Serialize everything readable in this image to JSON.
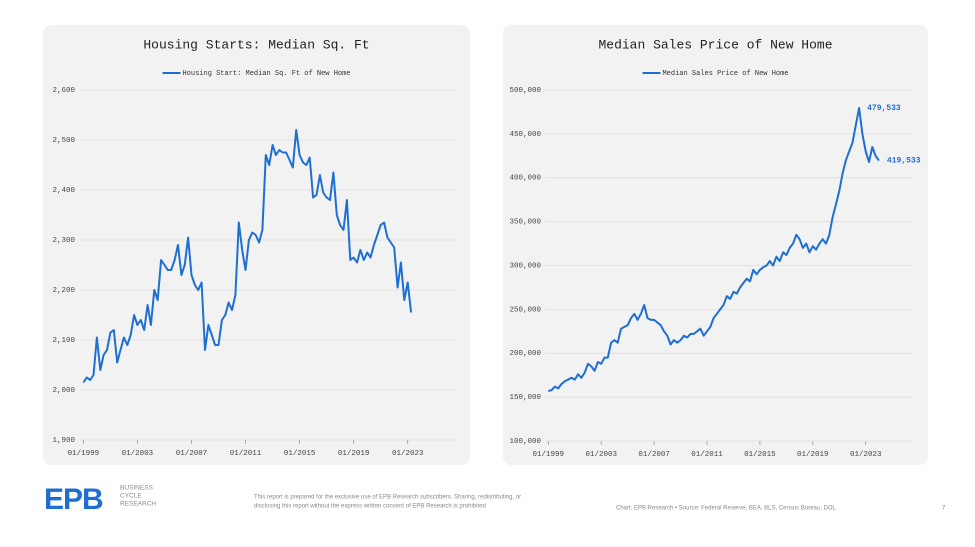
{
  "chart_data": [
    {
      "type": "line",
      "title": "Housing Starts: Median Sq. Ft",
      "series": [
        {
          "name": "Housing Start: Median Sq. Ft of New Home",
          "color": "#1f6fd1",
          "values": [
            2015,
            2025,
            2020,
            2030,
            2105,
            2040,
            2070,
            2080,
            2115,
            2120,
            2055,
            2080,
            2105,
            2090,
            2110,
            2150,
            2130,
            2140,
            2120,
            2170,
            2130,
            2200,
            2180,
            2260,
            2250,
            2240,
            2240,
            2260,
            2290,
            2230,
            2250,
            2305,
            2230,
            2210,
            2200,
            2215,
            2080,
            2130,
            2110,
            2090,
            2090,
            2140,
            2150,
            2175,
            2160,
            2190,
            2335,
            2280,
            2240,
            2300,
            2315,
            2310,
            2295,
            2320,
            2470,
            2450,
            2490,
            2470,
            2480,
            2475,
            2475,
            2460,
            2445,
            2520,
            2470,
            2455,
            2450,
            2465,
            2385,
            2390,
            2430,
            2395,
            2385,
            2380,
            2435,
            2350,
            2330,
            2320,
            2380,
            2260,
            2265,
            2255,
            2280,
            2260,
            2275,
            2265,
            2290,
            2310,
            2330,
            2335,
            2305,
            2295,
            2285,
            2205,
            2255,
            2180,
            2215,
            2155
          ]
        }
      ],
      "x": [
        "1999-01",
        "1999-04",
        "1999-07",
        "1999-10",
        "2000-01",
        "2000-04",
        "2000-07",
        "2000-10",
        "2001-01",
        "2001-04",
        "2001-07",
        "2001-10",
        "2002-01",
        "2002-04",
        "2002-07",
        "2002-10",
        "2003-01",
        "2003-04",
        "2003-07",
        "2003-10",
        "2004-01",
        "2004-04",
        "2004-07",
        "2004-10",
        "2005-01",
        "2005-04",
        "2005-07",
        "2005-10",
        "2006-01",
        "2006-04",
        "2006-07",
        "2006-10",
        "2007-01",
        "2007-04",
        "2007-07",
        "2007-10",
        "2008-01",
        "2008-04",
        "2008-07",
        "2008-10",
        "2009-01",
        "2009-04",
        "2009-07",
        "2009-10",
        "2010-01",
        "2010-04",
        "2010-07",
        "2010-10",
        "2011-01",
        "2011-04",
        "2011-07",
        "2011-10",
        "2012-01",
        "2012-04",
        "2012-07",
        "2012-10",
        "2013-01",
        "2013-04",
        "2013-07",
        "2013-10",
        "2014-01",
        "2014-04",
        "2014-07",
        "2014-10",
        "2015-01",
        "2015-04",
        "2015-07",
        "2015-10",
        "2016-01",
        "2016-04",
        "2016-07",
        "2016-10",
        "2017-01",
        "2017-04",
        "2017-07",
        "2017-10",
        "2018-01",
        "2018-04",
        "2018-07",
        "2018-10",
        "2019-01",
        "2019-04",
        "2019-07",
        "2019-10",
        "2020-01",
        "2020-04",
        "2020-07",
        "2020-10",
        "2021-01",
        "2021-04",
        "2021-07",
        "2021-10",
        "2022-01",
        "2022-04",
        "2022-07",
        "2022-10",
        "2023-01",
        "2023-04"
      ],
      "xlim": [
        "1998-10",
        "2026-07"
      ],
      "xticks": [
        {
          "value": "1999-01",
          "label": "01/1999"
        },
        {
          "value": "2003-01",
          "label": "01/2003"
        },
        {
          "value": "2007-01",
          "label": "01/2007"
        },
        {
          "value": "2011-01",
          "label": "01/2011"
        },
        {
          "value": "2015-01",
          "label": "01/2015"
        },
        {
          "value": "2019-01",
          "label": "01/2019"
        },
        {
          "value": "2023-01",
          "label": "01/2023"
        }
      ],
      "ylim": [
        1900,
        2600
      ],
      "yticks": [
        {
          "value": 1900,
          "label": "1,900"
        },
        {
          "value": 2000,
          "label": "2,000"
        },
        {
          "value": 2100,
          "label": "2,100"
        },
        {
          "value": 2200,
          "label": "2,200"
        },
        {
          "value": 2300,
          "label": "2,300"
        },
        {
          "value": 2400,
          "label": "2,400"
        },
        {
          "value": 2500,
          "label": "2,500"
        },
        {
          "value": 2600,
          "label": "2,600"
        }
      ],
      "grid": true
    },
    {
      "type": "line",
      "title": "Median Sales Price of New Home",
      "series": [
        {
          "name": "Median Sales Price of New Home",
          "color": "#1f6fd1",
          "values": [
            157000,
            158000,
            162000,
            160000,
            165000,
            168000,
            170000,
            172000,
            170000,
            176000,
            172000,
            178000,
            188000,
            185000,
            180000,
            190000,
            188000,
            195000,
            195000,
            212000,
            215000,
            212000,
            228000,
            230000,
            232000,
            240000,
            245000,
            238000,
            245000,
            255000,
            240000,
            238000,
            238000,
            235000,
            232000,
            225000,
            220000,
            210000,
            215000,
            212000,
            215000,
            220000,
            218000,
            222000,
            222000,
            225000,
            228000,
            220000,
            225000,
            230000,
            240000,
            245000,
            250000,
            255000,
            265000,
            262000,
            270000,
            268000,
            275000,
            280000,
            285000,
            282000,
            295000,
            290000,
            295000,
            298000,
            300000,
            305000,
            300000,
            310000,
            305000,
            315000,
            312000,
            320000,
            325000,
            335000,
            330000,
            320000,
            325000,
            315000,
            322000,
            318000,
            325000,
            330000,
            325000,
            335000,
            355000,
            370000,
            385000,
            405000,
            420000,
            430000,
            440000,
            460000,
            479533,
            450000,
            430000,
            418000,
            435000,
            425000,
            419533
          ],
          "value_labels": [
            null,
            null,
            null,
            null,
            null,
            null,
            null,
            null,
            null,
            null,
            null,
            null,
            null,
            null,
            null,
            null,
            null,
            null,
            null,
            null,
            null,
            null,
            null,
            null,
            null,
            null,
            null,
            null,
            null,
            null,
            null,
            null,
            null,
            null,
            null,
            null,
            null,
            null,
            null,
            null,
            null,
            null,
            null,
            null,
            null,
            null,
            null,
            null,
            null,
            null,
            null,
            null,
            null,
            null,
            null,
            null,
            null,
            null,
            null,
            null,
            null,
            null,
            null,
            null,
            null,
            null,
            null,
            null,
            null,
            null,
            null,
            null,
            null,
            null,
            null,
            null,
            null,
            null,
            null,
            null,
            null,
            null,
            null,
            null,
            null,
            null,
            null,
            null,
            null,
            null,
            null,
            null,
            null,
            null,
            "479,533",
            null,
            null,
            null,
            null,
            null,
            "419,533"
          ]
        }
      ],
      "x": [
        "1999-01",
        "1999-04",
        "1999-07",
        "1999-10",
        "2000-01",
        "2000-04",
        "2000-07",
        "2000-10",
        "2001-01",
        "2001-04",
        "2001-07",
        "2001-10",
        "2002-01",
        "2002-04",
        "2002-07",
        "2002-10",
        "2003-01",
        "2003-04",
        "2003-07",
        "2003-10",
        "2004-01",
        "2004-04",
        "2004-07",
        "2004-10",
        "2005-01",
        "2005-04",
        "2005-07",
        "2005-10",
        "2006-01",
        "2006-04",
        "2006-07",
        "2006-10",
        "2007-01",
        "2007-04",
        "2007-07",
        "2007-10",
        "2008-01",
        "2008-04",
        "2008-07",
        "2008-10",
        "2009-01",
        "2009-04",
        "2009-07",
        "2009-10",
        "2010-01",
        "2010-04",
        "2010-07",
        "2010-10",
        "2011-01",
        "2011-04",
        "2011-07",
        "2011-10",
        "2012-01",
        "2012-04",
        "2012-07",
        "2012-10",
        "2013-01",
        "2013-04",
        "2013-07",
        "2013-10",
        "2014-01",
        "2014-04",
        "2014-07",
        "2014-10",
        "2015-01",
        "2015-04",
        "2015-07",
        "2015-10",
        "2016-01",
        "2016-04",
        "2016-07",
        "2016-10",
        "2017-01",
        "2017-04",
        "2017-07",
        "2017-10",
        "2018-01",
        "2018-04",
        "2018-07",
        "2018-10",
        "2019-01",
        "2019-04",
        "2019-07",
        "2019-10",
        "2020-01",
        "2020-04",
        "2020-07",
        "2020-10",
        "2021-01",
        "2021-04",
        "2021-07",
        "2021-10",
        "2022-01",
        "2022-04",
        "2022-07",
        "2022-10",
        "2023-01",
        "2023-04",
        "2023-07",
        "2023-10",
        "2024-01"
      ],
      "xlim": [
        "1998-10",
        "2026-07"
      ],
      "xticks": [
        {
          "value": "1999-01",
          "label": "01/1999"
        },
        {
          "value": "2003-01",
          "label": "01/2003"
        },
        {
          "value": "2007-01",
          "label": "01/2007"
        },
        {
          "value": "2011-01",
          "label": "01/2011"
        },
        {
          "value": "2015-01",
          "label": "01/2015"
        },
        {
          "value": "2019-01",
          "label": "01/2019"
        },
        {
          "value": "2023-01",
          "label": "01/2023"
        }
      ],
      "ylim": [
        100000,
        500000
      ],
      "yticks": [
        {
          "value": 100000,
          "label": "100,000"
        },
        {
          "value": 150000,
          "label": "150,000"
        },
        {
          "value": 200000,
          "label": "200,000"
        },
        {
          "value": 250000,
          "label": "250,000"
        },
        {
          "value": 300000,
          "label": "300,000"
        },
        {
          "value": 350000,
          "label": "350,000"
        },
        {
          "value": 400000,
          "label": "400,000"
        },
        {
          "value": 450000,
          "label": "450,000"
        },
        {
          "value": 500000,
          "label": "500,000"
        }
      ],
      "grid": true
    }
  ],
  "footer": {
    "logo": "EPB",
    "tagline": [
      "BUSINESS",
      "CYCLE",
      "RESEARCH"
    ],
    "disclaimer": [
      "This report is prepared for the exclusive use of EPB Research subscribers. Sharing, redistributing, or",
      "disclosing this report without the express written consent of EPB Research is prohibited"
    ],
    "source": "Chart: EPB Research  •  Source: Federal Reserve, BEA, BLS, Census Bureau, DOL",
    "page": "7"
  }
}
